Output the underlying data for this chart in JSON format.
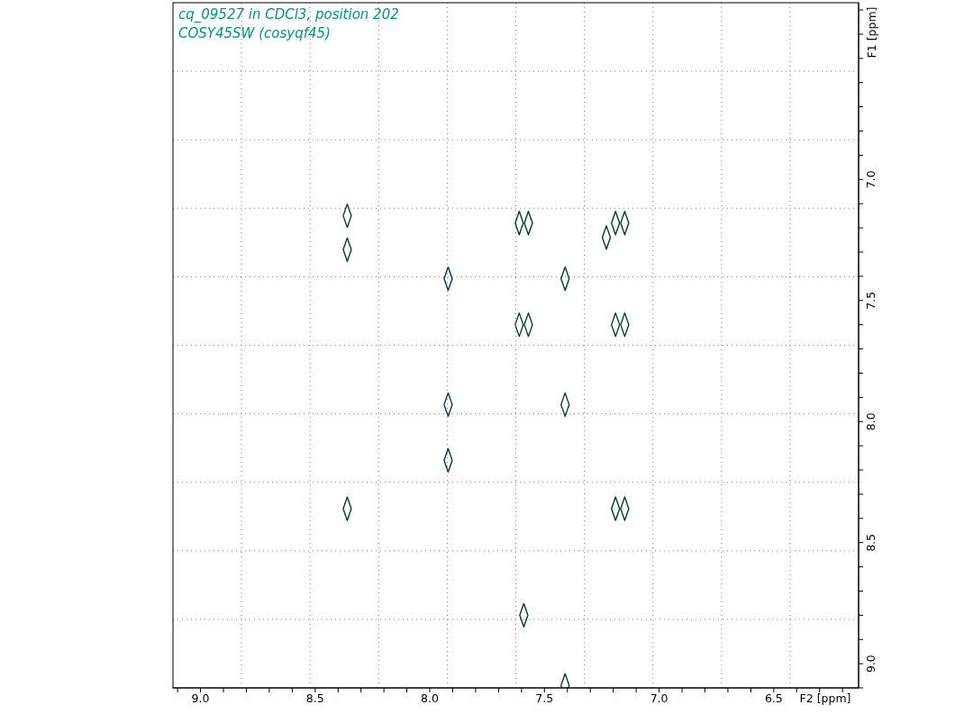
{
  "chart_data": {
    "type": "scatter",
    "title": "cq_09527 in CDCl3, position 202",
    "subtitle": "COSY45SW (cosyqf45)",
    "xlabel": "F2 [ppm]",
    "ylabel": "F1 [ppm]",
    "x": [
      8.36,
      8.36,
      7.61,
      7.57,
      7.23,
      7.19,
      7.15,
      7.92,
      7.41,
      7.61,
      7.57,
      7.19,
      7.15,
      7.92,
      7.41,
      7.92,
      8.36,
      7.19,
      7.15,
      7.59,
      7.41
    ],
    "values": [
      7.15,
      7.29,
      7.18,
      7.18,
      7.24,
      7.18,
      7.18,
      7.41,
      7.41,
      7.6,
      7.6,
      7.6,
      7.6,
      7.93,
      7.93,
      8.16,
      8.36,
      8.36,
      8.36,
      8.8,
      9.09
    ],
    "color": "#003c3c",
    "marker": "diamond",
    "grid": true,
    "xlim": [
      9.12,
      6.13
    ],
    "ylim": [
      9.1,
      6.27
    ],
    "xticks": [
      {
        "value": 9.1,
        "label": null
      },
      {
        "value": 9,
        "label": "9.0"
      },
      {
        "value": 8.9,
        "label": null
      },
      {
        "value": 8.8,
        "label": null
      },
      {
        "value": 8.7,
        "label": null
      },
      {
        "value": 8.6,
        "label": null
      },
      8.5,
      {
        "value": 8.4,
        "label": null
      },
      {
        "value": 8.3,
        "label": null
      },
      {
        "value": 8.2,
        "label": null
      },
      {
        "value": 8.1,
        "label": null
      },
      {
        "value": 8,
        "label": "8.0"
      },
      {
        "value": 7.9,
        "label": null
      },
      {
        "value": 7.8,
        "label": null
      },
      {
        "value": 7.7,
        "label": null
      },
      {
        "value": 7.6,
        "label": null
      },
      7.5,
      {
        "value": 7.4,
        "label": null
      },
      {
        "value": 7.3,
        "label": null
      },
      {
        "value": 7.2,
        "label": null
      },
      {
        "value": 7.1,
        "label": null
      },
      {
        "value": 7,
        "label": "7.0"
      },
      {
        "value": 6.9,
        "label": null
      },
      {
        "value": 6.8,
        "label": null
      },
      {
        "value": 6.7,
        "label": null
      },
      {
        "value": 6.6,
        "label": null
      },
      6.5,
      {
        "value": 6.4,
        "label": null
      },
      {
        "value": 6.3,
        "label": null
      },
      {
        "value": 6.2,
        "label": null
      }
    ],
    "yticks": [
      {
        "value": 6.3,
        "label": null
      },
      {
        "value": 6.4,
        "label": null
      },
      {
        "value": 6.5,
        "label": null
      },
      {
        "value": 6.6,
        "label": null
      },
      {
        "value": 6.7,
        "label": null
      },
      {
        "value": 6.8,
        "label": null
      },
      {
        "value": 6.9,
        "label": null
      },
      {
        "value": 7,
        "label": "7.0"
      },
      {
        "value": 7.1,
        "label": null
      },
      {
        "value": 7.2,
        "label": null
      },
      {
        "value": 7.3,
        "label": null
      },
      {
        "value": 7.4,
        "label": null
      },
      7.5,
      {
        "value": 7.6,
        "label": null
      },
      {
        "value": 7.7,
        "label": null
      },
      {
        "value": 7.8,
        "label": null
      },
      {
        "value": 7.9,
        "label": null
      },
      {
        "value": 8,
        "label": "8.0"
      },
      {
        "value": 8.1,
        "label": null
      },
      {
        "value": 8.2,
        "label": null
      },
      {
        "value": 8.3,
        "label": null
      },
      {
        "value": 8.4,
        "label": null
      },
      8.5,
      {
        "value": 8.6,
        "label": null
      },
      {
        "value": 8.7,
        "label": null
      },
      {
        "value": 8.8,
        "label": null
      },
      {
        "value": 8.9,
        "label": null
      },
      {
        "value": 9,
        "label": "9.0"
      },
      {
        "value": 9.1,
        "label": null
      }
    ]
  }
}
